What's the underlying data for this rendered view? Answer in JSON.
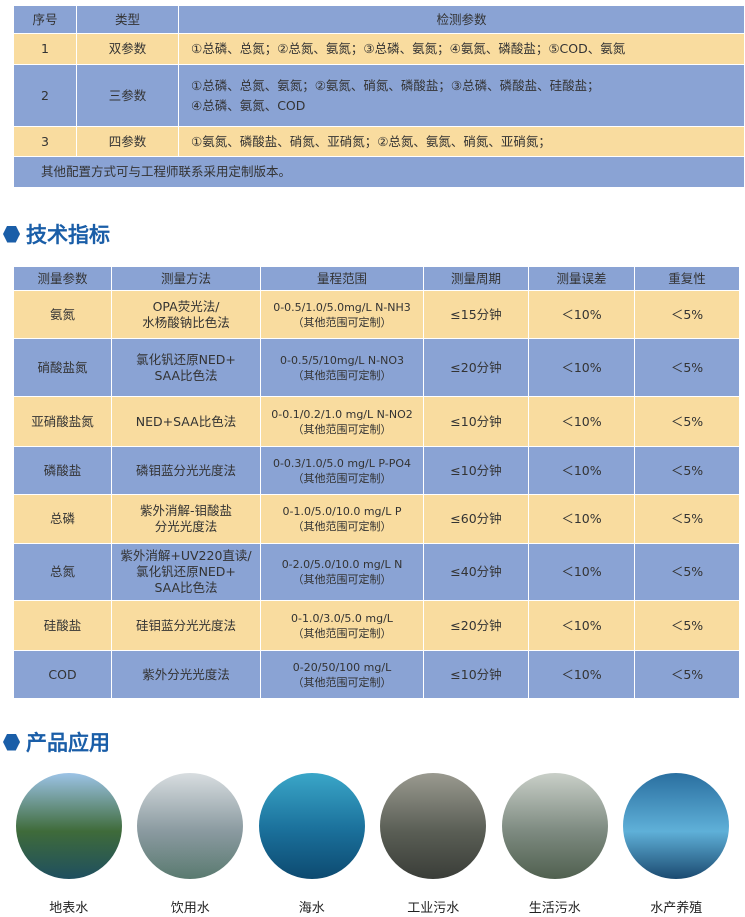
{
  "config_table": {
    "headers": [
      "序号",
      "类型",
      "检测参数"
    ],
    "rows": [
      [
        "1",
        "双参数",
        "①总磷、总氮；②总氮、氨氮；③总磷、氨氮；④氨氮、磷酸盐；⑤COD、氨氮"
      ],
      [
        "2",
        "三参数",
        "①总磷、总氮、氨氮；②氨氮、硝氮、磷酸盐；③总磷、磷酸盐、硅酸盐；",
        "④总磷、氨氮、COD"
      ],
      [
        "3",
        "四参数",
        "①氨氮、磷酸盐、硝氮、亚硝氮；②总氮、氨氮、硝氮、亚硝氮；"
      ]
    ],
    "note": "其他配置方式可与工程师联系采用定制版本。"
  },
  "spec_heading": "技术指标",
  "spec_table": {
    "headers": [
      "测量参数",
      "测量方法",
      "量程范围",
      "测量周期",
      "测量误差",
      "重复性"
    ],
    "rows": [
      {
        "param": "氨氮",
        "method": [
          "OPA荧光法/",
          "水杨酸钠比色法"
        ],
        "range": [
          "0-0.5/1.0/5.0mg/L N-NH3",
          "（其他范围可定制）"
        ],
        "period": "≤15分钟",
        "error": "＜10%",
        "repeat": "＜5%"
      },
      {
        "param": "硝酸盐氮",
        "method": [
          "氯化钒还原NED+",
          "SAA比色法"
        ],
        "range": [
          "0-0.5/5/10mg/L N-NO3",
          "（其他范围可定制）"
        ],
        "period": "≤20分钟",
        "error": "＜10%",
        "repeat": "＜5%"
      },
      {
        "param": "亚硝酸盐氮",
        "method": [
          "NED+SAA比色法"
        ],
        "range": [
          "0-0.1/0.2/1.0 mg/L N-NO2",
          "（其他范围可定制）"
        ],
        "period": "≤10分钟",
        "error": "＜10%",
        "repeat": "＜5%"
      },
      {
        "param": "磷酸盐",
        "method": [
          "磷钼蓝分光光度法"
        ],
        "range": [
          "0-0.3/1.0/5.0 mg/L P-PO4",
          "（其他范围可定制）"
        ],
        "period": "≤10分钟",
        "error": "＜10%",
        "repeat": "＜5%"
      },
      {
        "param": "总磷",
        "method": [
          "紫外消解-钼酸盐",
          "分光光度法"
        ],
        "range": [
          "0-1.0/5.0/10.0 mg/L P",
          "（其他范围可定制）"
        ],
        "period": "≤60分钟",
        "error": "＜10%",
        "repeat": "＜5%"
      },
      {
        "param": "总氮",
        "method": [
          "紫外消解+UV220直读/",
          "氯化钒还原NED+",
          "SAA比色法"
        ],
        "range": [
          "0-2.0/5.0/10.0 mg/L N",
          "（其他范围可定制）"
        ],
        "period": "≤40分钟",
        "error": "＜10%",
        "repeat": "＜5%"
      },
      {
        "param": "硅酸盐",
        "method": [
          "硅钼蓝分光光度法"
        ],
        "range": [
          "0-1.0/3.0/5.0 mg/L",
          "（其他范围可定制）"
        ],
        "period": "≤20分钟",
        "error": "＜10%",
        "repeat": "＜5%"
      },
      {
        "param": "COD",
        "method": [
          "紫外分光光度法"
        ],
        "range": [
          "0-20/50/100 mg/L",
          "（其他范围可定制）"
        ],
        "period": "≤10分钟",
        "error": "＜10%",
        "repeat": "＜5%"
      }
    ]
  },
  "app_heading": "产品应用",
  "applications": [
    {
      "label": "地表水",
      "colors": [
        "#9cc3e6",
        "#3f6b3a",
        "#1f4f5f"
      ]
    },
    {
      "label": "饮用水",
      "colors": [
        "#d8dde0",
        "#8a9aa0",
        "#5a7a70"
      ]
    },
    {
      "label": "海水",
      "colors": [
        "#3aa6c8",
        "#1a6f9a",
        "#0d4a70"
      ]
    },
    {
      "label": "工业污水",
      "colors": [
        "#9a9a90",
        "#5a5e55",
        "#3a3d38"
      ]
    },
    {
      "label": "生活污水",
      "colors": [
        "#c9cfc8",
        "#7d8a80",
        "#50604f"
      ]
    },
    {
      "label": "水产养殖",
      "colors": [
        "#2a6fa0",
        "#5fb0d8",
        "#1b4a70"
      ]
    }
  ],
  "colors": {
    "blue_row": "#8aa3d4",
    "orange_row": "#f9dc9f",
    "heading": "#1a5ea8"
  }
}
